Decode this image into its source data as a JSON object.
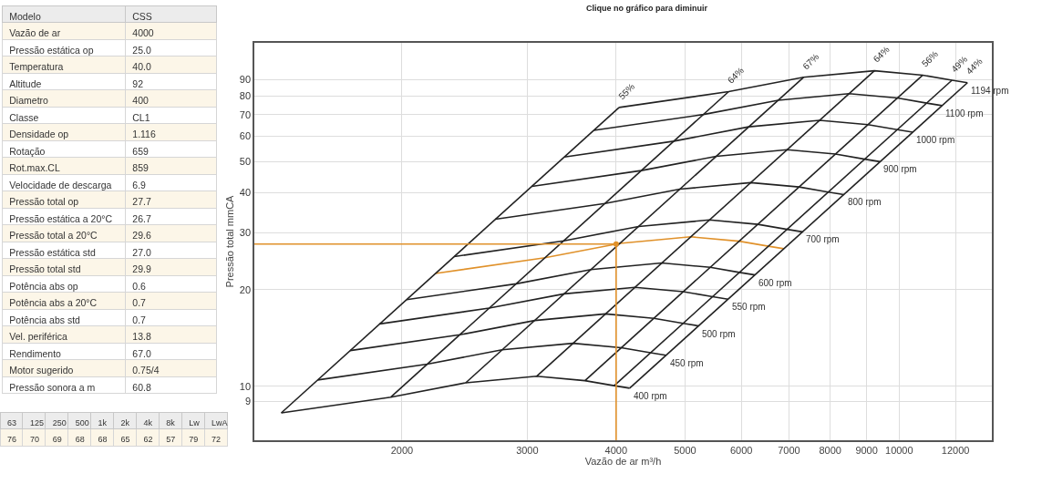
{
  "chart_data": [
    {
      "type": "other",
      "cell_labels": [
        [
          "Modelo",
          "CSS"
        ],
        [
          "Vazão de ar",
          "4000"
        ],
        [
          "Pressão estática op",
          "25.0"
        ],
        [
          "Temperatura",
          "40.0"
        ],
        [
          "Altitude",
          "92"
        ],
        [
          "Diametro",
          "400"
        ],
        [
          "Classe",
          "CL1"
        ],
        [
          "Densidade op",
          "1.116"
        ],
        [
          "Rotação",
          "659"
        ],
        [
          "Rot.max.CL",
          "859"
        ],
        [
          "Velocidade de descarga",
          "6.9"
        ],
        [
          "Pressão total op",
          "27.7"
        ],
        [
          "Pressão estática a 20°C",
          "26.7"
        ],
        [
          "Pressão total a 20°C",
          "29.6"
        ],
        [
          "Pressão estática std",
          "27.0"
        ],
        [
          "Pressão total std",
          "29.9"
        ],
        [
          "Potência abs op",
          "0.6"
        ],
        [
          "Potência abs a 20°C",
          "0.7"
        ],
        [
          "Potência abs std",
          "0.7"
        ],
        [
          "Vel. periférica",
          "13.8"
        ],
        [
          "Rendimento",
          "67.0"
        ],
        [
          "Motor sugerido",
          "0.75/4"
        ],
        [
          "Pressão sonora a m",
          "60.8"
        ]
      ]
    },
    {
      "type": "other",
      "cell_labels": [
        [
          "63",
          "125",
          "250",
          "500",
          "1k",
          "2k",
          "4k",
          "8k",
          "Lw",
          "LwA"
        ],
        [
          "76",
          "70",
          "69",
          "68",
          "68",
          "65",
          "62",
          "57",
          "79",
          "72"
        ]
      ]
    },
    {
      "type": "line",
      "title": "Clique no gráfico para diminuir",
      "xlabel": "Vazão de ar m³/h",
      "ylabel": "Pressão total mmCA",
      "log": "xy",
      "grid": true,
      "xlim": [
        1240,
        13500
      ],
      "ylim": [
        6.8,
        117
      ],
      "xticks": [
        2000,
        3000,
        4000,
        5000,
        6000,
        7000,
        8000,
        9000,
        10000,
        12000
      ],
      "yticks": [
        9,
        10,
        20,
        30,
        40,
        50,
        60,
        70,
        80,
        90
      ],
      "series": [
        {
          "name": "400 rpm",
          "color": "#222222",
          "x": [
            1353,
            1929,
            2458,
            3092,
            3616,
            3975,
            4179
          ],
          "values": [
            8.27,
            9.26,
            10.26,
            10.75,
            10.42,
            10.05,
            9.87
          ]
        },
        {
          "name": "450 rpm",
          "color": "#222222",
          "x": [
            1522,
            2170,
            2765,
            3479,
            4068,
            4472,
            4701
          ],
          "values": [
            10.47,
            11.72,
            12.99,
            13.61,
            13.19,
            12.72,
            12.49
          ]
        },
        {
          "name": "500 rpm",
          "color": "#222222",
          "x": [
            1691,
            2411,
            3073,
            3865,
            4520,
            4969,
            5224
          ],
          "values": [
            12.92,
            14.47,
            16.03,
            16.8,
            16.28,
            15.7,
            15.42
          ]
        },
        {
          "name": "550 rpm",
          "color": "#222222",
          "x": [
            1860,
            2652,
            3380,
            4252,
            4972,
            5466,
            5746
          ],
          "values": [
            15.64,
            17.51,
            19.4,
            20.32,
            19.7,
            19.0,
            18.66
          ]
        },
        {
          "name": "600 rpm",
          "color": "#222222",
          "x": [
            2030,
            2894,
            3687,
            4638,
            5424,
            5963,
            6269
          ],
          "values": [
            18.61,
            20.84,
            23.09,
            24.19,
            23.45,
            22.61,
            22.21
          ]
        },
        {
          "color": "#e0912a",
          "x": [
            2229,
            3178,
            4050,
            5094,
            5957,
            6549,
            6885
          ],
          "values": [
            22.45,
            25.13,
            27.85,
            29.18,
            28.28,
            27.28,
            26.79
          ]
        },
        {
          "name": "700 rpm",
          "color": "#222222",
          "x": [
            2368,
            3376,
            4302,
            5411,
            6328,
            6956,
            7313
          ],
          "values": [
            25.33,
            28.36,
            31.42,
            32.92,
            31.91,
            30.78,
            30.23
          ]
        },
        {
          "name": "800 rpm",
          "color": "#222222",
          "x": [
            2706,
            3858,
            4916,
            6184,
            7232,
            7950,
            8358
          ],
          "values": [
            33.08,
            37.04,
            41.04,
            43.0,
            41.68,
            40.2,
            39.48
          ]
        },
        {
          "name": "900 rpm",
          "color": "#222222",
          "x": [
            3044,
            4340,
            5531,
            6957,
            8136,
            8944,
            9403
          ],
          "values": [
            41.87,
            46.88,
            51.94,
            54.42,
            52.75,
            50.88,
            49.97
          ]
        },
        {
          "name": "1000 rpm",
          "color": "#222222",
          "x": [
            3383,
            4823,
            6145,
            7730,
            9040,
            9938,
            10448
          ],
          "values": [
            51.69,
            57.88,
            64.13,
            67.19,
            65.13,
            62.81,
            61.69
          ]
        },
        {
          "name": "1100 rpm",
          "color": "#222222",
          "x": [
            3721,
            5305,
            6760,
            8503,
            9944,
            10931,
            11492
          ],
          "values": [
            62.54,
            70.03,
            77.59,
            81.3,
            78.8,
            76.0,
            74.64
          ]
        },
        {
          "name": "1194 rpm",
          "color": "#222222",
          "x": [
            4039,
            5758,
            7337,
            9230,
            10794,
            11865,
            12474
          ],
          "values": [
            73.69,
            82.51,
            91.42,
            95.78,
            92.84,
            89.55,
            87.94
          ]
        },
        {
          "name": "55%",
          "color": "#222222",
          "x": [
            1353,
            4039
          ],
          "values": [
            8.27,
            73.69
          ]
        },
        {
          "name": "64%",
          "color": "#222222",
          "x": [
            1929,
            5758
          ],
          "values": [
            9.26,
            82.51
          ]
        },
        {
          "name": "67%",
          "color": "#222222",
          "x": [
            2458,
            7337
          ],
          "values": [
            10.26,
            91.42
          ]
        },
        {
          "name": "64%",
          "color": "#222222",
          "x": [
            3092,
            9230
          ],
          "values": [
            10.75,
            95.78
          ]
        },
        {
          "name": "56%",
          "color": "#222222",
          "x": [
            3616,
            10794
          ],
          "values": [
            10.42,
            92.84
          ]
        },
        {
          "name": "49%",
          "color": "#222222",
          "x": [
            3975,
            11865
          ],
          "values": [
            10.05,
            89.55
          ]
        },
        {
          "name": "44%",
          "color": "#222222",
          "x": [
            4179,
            12474
          ],
          "values": [
            9.87,
            87.94
          ]
        },
        {
          "color": "#e0912a",
          "x": [
            1240,
            4000,
            4000
          ],
          "values": [
            27.7,
            27.7,
            6.8
          ]
        },
        {
          "type": "scatter",
          "color": "#e0912a",
          "x": [
            4000
          ],
          "values": [
            27.7
          ]
        }
      ]
    }
  ]
}
